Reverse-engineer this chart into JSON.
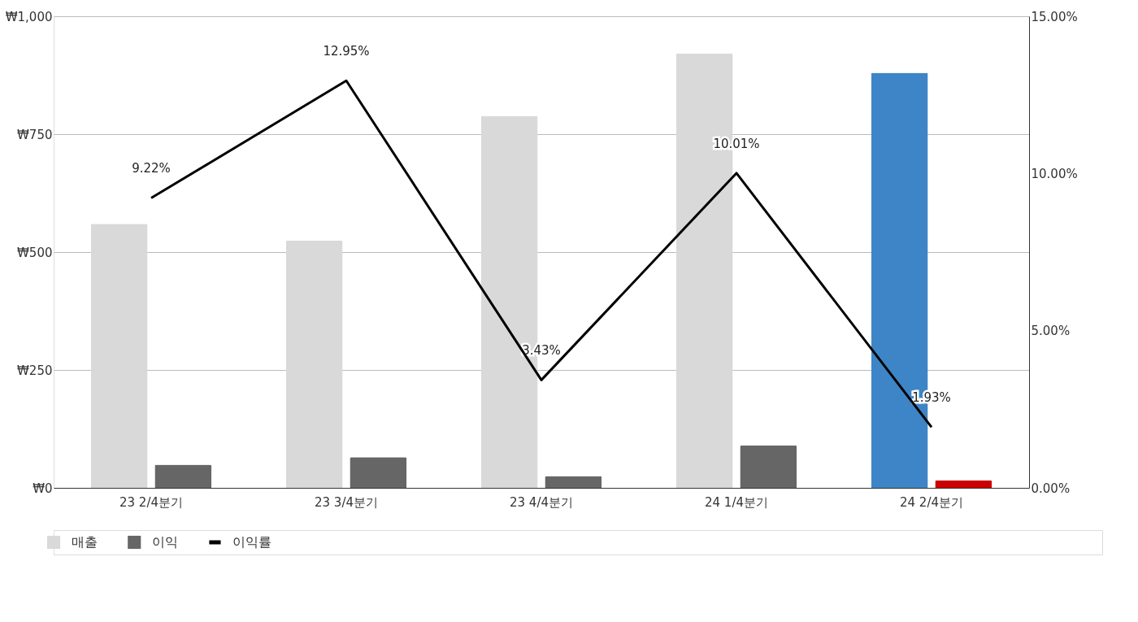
{
  "chart_data": {
    "type": "bar",
    "categories": [
      "23 2/4분기",
      "23 3/4분기",
      "23 4/4분기",
      "24 1/4분기",
      "24 2/4분기"
    ],
    "series": [
      {
        "name": "매출",
        "color": "#d9d9d9",
        "colors": [
          "#d9d9d9",
          "#d9d9d9",
          "#d9d9d9",
          "#d9d9d9",
          "#3d85c6"
        ],
        "values": [
          560,
          524,
          789,
          921,
          880
        ]
      },
      {
        "name": "이익",
        "color": "#666666",
        "colors": [
          "#666666",
          "#666666",
          "#666666",
          "#666666",
          "#cc0000"
        ],
        "values": [
          49,
          65,
          25,
          90,
          16
        ]
      },
      {
        "name": "이익률",
        "type": "line",
        "axis": "y2",
        "color": "#000000",
        "values": [
          9.22,
          12.95,
          3.43,
          10.01,
          1.93
        ],
        "value_labels": [
          "9.22%",
          "12.95%",
          "3.43%",
          "10.01%",
          "1.93%"
        ]
      }
    ],
    "ylim": [
      0,
      1000
    ],
    "yticks": [
      {
        "value": 0,
        "label": "₩0"
      },
      {
        "value": 250,
        "label": "₩250"
      },
      {
        "value": 500,
        "label": "₩500"
      },
      {
        "value": 750,
        "label": "₩750"
      },
      {
        "value": 1000,
        "label": "₩1,000"
      }
    ],
    "y2lim": [
      0,
      15
    ],
    "y2ticks": [
      {
        "value": 0,
        "label": "0.00%"
      },
      {
        "value": 5,
        "label": "5.00%"
      },
      {
        "value": 10,
        "label": "10.00%"
      },
      {
        "value": 15,
        "label": "15.00%"
      }
    ],
    "grid": "y",
    "legend": "bottom left",
    "line_style": "solid",
    "marker": "none"
  }
}
